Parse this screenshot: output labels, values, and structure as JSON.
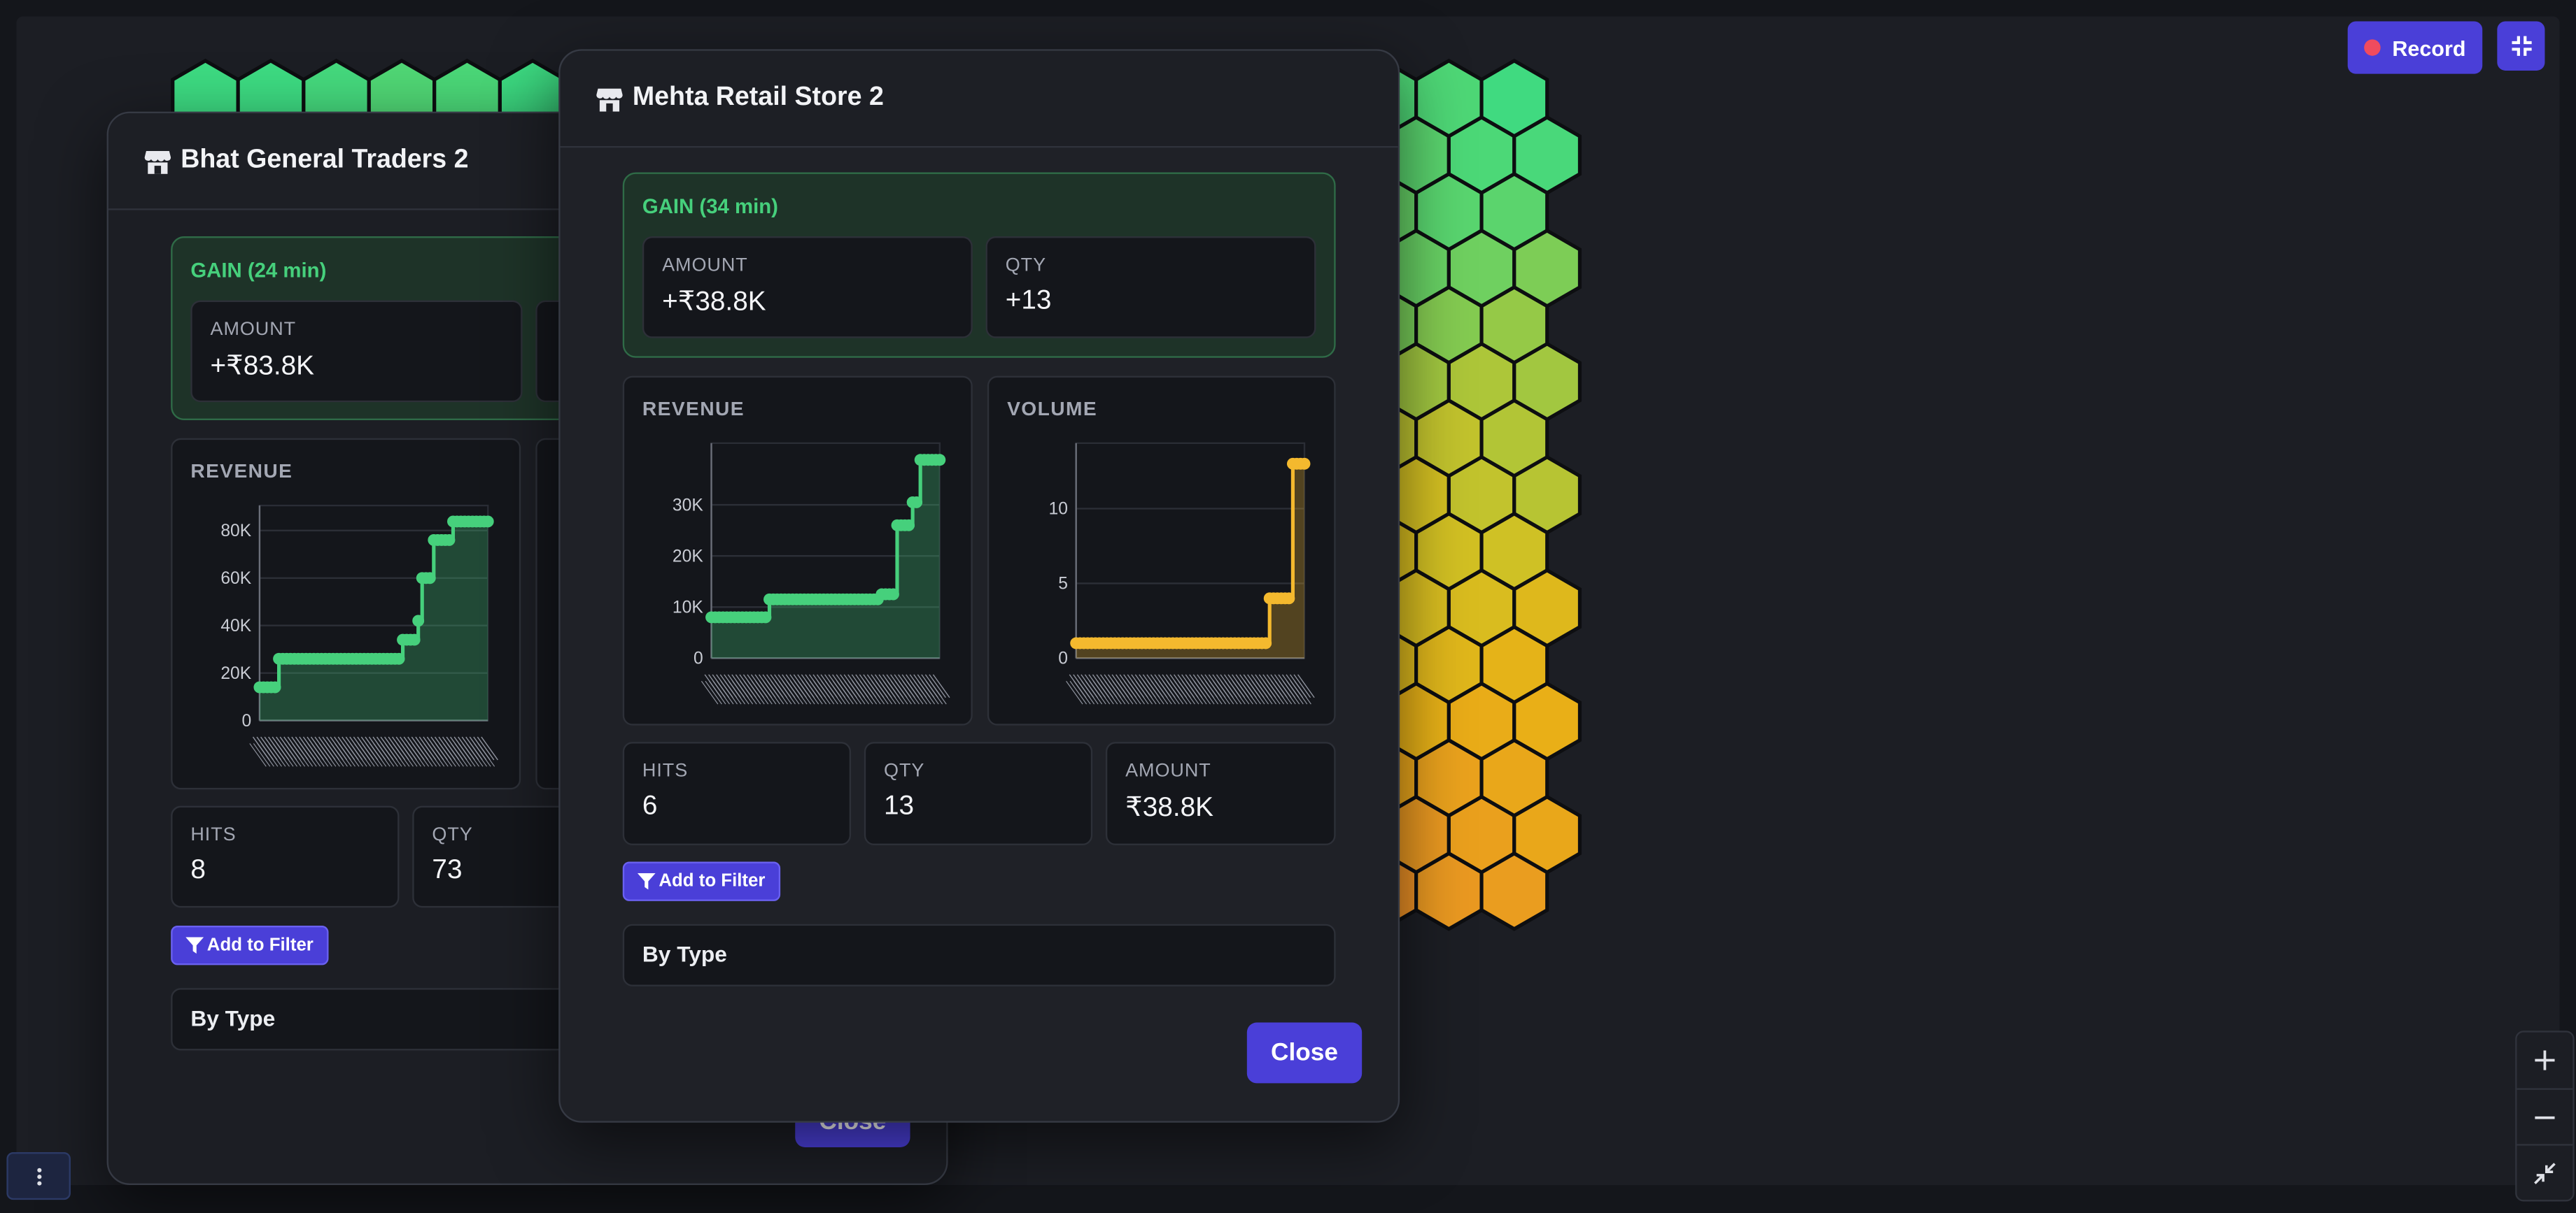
{
  "toolbar": {
    "record_label": "Record"
  },
  "icons": {
    "store": "store-icon",
    "filter": "filter-icon",
    "record": "record-dot-icon",
    "collapse": "collapse-icon",
    "zoom_in": "plus-icon",
    "zoom_out": "minus-icon",
    "fit": "fit-icon",
    "menu": "kebab-icon"
  },
  "colors": {
    "accent": "#4a3fd8",
    "gain": "#46d07c",
    "volume": "#f4b92e"
  },
  "back_panel": {
    "title": "Bhat General Traders 2",
    "gain_label": "GAIN (24 min)",
    "amount_label": "AMOUNT",
    "amount_value": "+₹83.8K",
    "revenue_label": "REVENUE",
    "hits_label": "HITS",
    "hits_value": "8",
    "qty_label": "QTY",
    "qty_value": "73",
    "filter_label": "Add to Filter",
    "bytype_label": "By Type",
    "close_label": "Close"
  },
  "front_panel": {
    "title": "Mehta Retail Store 2",
    "gain_label": "GAIN (34 min)",
    "amount_label": "AMOUNT",
    "amount_value": "+₹38.8K",
    "qty_label": "QTY",
    "qty_value": "+13",
    "revenue_label": "REVENUE",
    "volume_label": "VOLUME",
    "hits_label": "HITS",
    "hits_value": "6",
    "qty2_label": "QTY",
    "qty2_value": "13",
    "amount2_label": "AMOUNT",
    "amount2_value": "₹38.8K",
    "filter_label": "Add to Filter",
    "bytype_label": "By Type",
    "close_label": "Close"
  },
  "chart_data": [
    {
      "type": "area",
      "panel": "back",
      "title": "REVENUE",
      "x": [
        0,
        1,
        2,
        3,
        4,
        5,
        6,
        7,
        8,
        9,
        10,
        11,
        12,
        13,
        14,
        15,
        16,
        17,
        18,
        19,
        20,
        21,
        22,
        23,
        24,
        25,
        26,
        27,
        28,
        29,
        30,
        31,
        32,
        33,
        34,
        35,
        36,
        37,
        38,
        39,
        40,
        41,
        42,
        43,
        44,
        45,
        46,
        47,
        48,
        49,
        50,
        51,
        52,
        53,
        54,
        55,
        56,
        57,
        58,
        59
      ],
      "values": [
        14000,
        14000,
        14000,
        14000,
        14000,
        26000,
        26000,
        26000,
        26000,
        26000,
        26000,
        26000,
        26000,
        26000,
        26000,
        26000,
        26000,
        26000,
        26000,
        26000,
        26000,
        26000,
        26000,
        26000,
        26000,
        26000,
        26000,
        26000,
        26000,
        26000,
        26000,
        26000,
        26000,
        26000,
        26000,
        26000,
        26000,
        34000,
        34000,
        34000,
        34000,
        42000,
        60000,
        60000,
        60000,
        76000,
        76000,
        76000,
        76000,
        76000,
        83800,
        83800,
        83800,
        83800,
        83800,
        83800,
        83800,
        83800,
        83800,
        83800
      ],
      "yticks": [
        "0",
        "20K",
        "40K",
        "60K",
        "80K"
      ],
      "ylim": [
        0,
        85000
      ],
      "color": "#46d07c"
    },
    {
      "type": "area",
      "panel": "front",
      "title": "REVENUE",
      "x": [
        0,
        1,
        2,
        3,
        4,
        5,
        6,
        7,
        8,
        9,
        10,
        11,
        12,
        13,
        14,
        15,
        16,
        17,
        18,
        19,
        20,
        21,
        22,
        23,
        24,
        25,
        26,
        27,
        28,
        29,
        30,
        31,
        32,
        33,
        34,
        35,
        36,
        37,
        38,
        39,
        40,
        41,
        42,
        43,
        44,
        45,
        46,
        47,
        48,
        49,
        50,
        51,
        52,
        53,
        54,
        55,
        56,
        57,
        58,
        59
      ],
      "values": [
        8000,
        8000,
        8000,
        8000,
        8000,
        8000,
        8000,
        8000,
        8000,
        8000,
        8000,
        8000,
        8000,
        8000,
        8000,
        11500,
        11500,
        11500,
        11500,
        11500,
        11500,
        11500,
        11500,
        11500,
        11500,
        11500,
        11500,
        11500,
        11500,
        11500,
        11500,
        11500,
        11500,
        11500,
        11500,
        11500,
        11500,
        11500,
        11500,
        11500,
        11500,
        11500,
        11500,
        11500,
        12500,
        12500,
        12500,
        12500,
        26000,
        26000,
        26000,
        26000,
        30500,
        30500,
        38800,
        38800,
        38800,
        38800,
        38800,
        38800
      ],
      "yticks": [
        "0",
        "10K",
        "20K",
        "30K"
      ],
      "ylim": [
        0,
        39500
      ],
      "color": "#46d07c"
    },
    {
      "type": "area",
      "panel": "front",
      "title": "VOLUME",
      "x": [
        0,
        1,
        2,
        3,
        4,
        5,
        6,
        7,
        8,
        9,
        10,
        11,
        12,
        13,
        14,
        15,
        16,
        17,
        18,
        19,
        20,
        21,
        22,
        23,
        24,
        25,
        26,
        27,
        28,
        29,
        30,
        31,
        32,
        33,
        34,
        35,
        36,
        37,
        38,
        39,
        40,
        41,
        42,
        43,
        44,
        45,
        46,
        47,
        48,
        49,
        50,
        51,
        52,
        53,
        54,
        55,
        56,
        57,
        58,
        59
      ],
      "values": [
        1,
        1,
        1,
        1,
        1,
        1,
        1,
        1,
        1,
        1,
        1,
        1,
        1,
        1,
        1,
        1,
        1,
        1,
        1,
        1,
        1,
        1,
        1,
        1,
        1,
        1,
        1,
        1,
        1,
        1,
        1,
        1,
        1,
        1,
        1,
        1,
        1,
        1,
        1,
        1,
        1,
        1,
        1,
        1,
        1,
        1,
        1,
        1,
        1,
        1,
        4,
        4,
        4,
        4,
        4,
        4,
        13,
        13,
        13,
        13
      ],
      "yticks": [
        "0",
        "5",
        "10"
      ],
      "ylim": [
        0,
        13.5
      ],
      "color": "#f4b92e"
    }
  ]
}
